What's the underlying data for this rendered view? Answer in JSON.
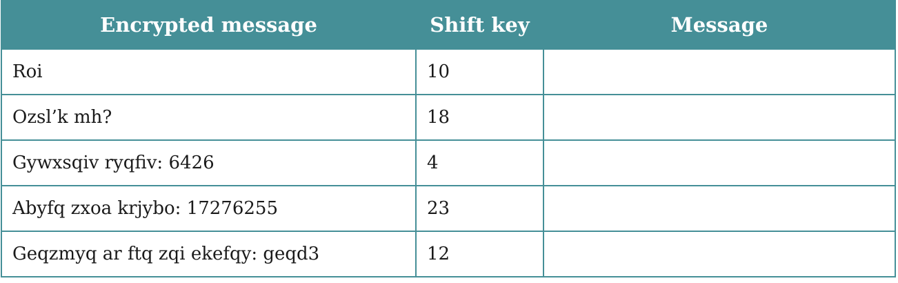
{
  "table": {
    "headers": [
      "Encrypted message",
      "Shift key",
      "Message"
    ],
    "rows": [
      {
        "encrypted": "Roi",
        "shift": "10",
        "message": ""
      },
      {
        "encrypted": "Ozsl’k mh?",
        "shift": "18",
        "message": ""
      },
      {
        "encrypted": "Gywxsqiv ryqfiv: 6426",
        "shift": "4",
        "message": ""
      },
      {
        "encrypted": "Abyfq zxoa krjybo: 17276255",
        "shift": "23",
        "message": ""
      },
      {
        "encrypted": "Geqzmyq ar ftq zqi ekefqy: geqd3",
        "shift": "12",
        "message": ""
      }
    ]
  },
  "colors": {
    "header_background": "#458f97",
    "header_text": "#ffffff",
    "border": "#458f97"
  }
}
